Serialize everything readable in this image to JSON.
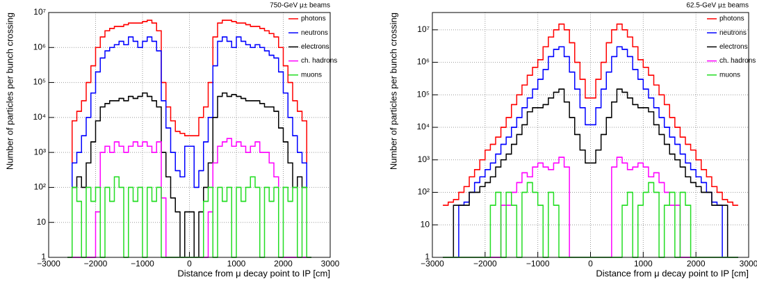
{
  "chart_data": [
    {
      "type": "histogram",
      "annotation": "750-GeV μ± beams",
      "xlabel": "Distance from μ decay point to IP [cm]",
      "ylabel": "Number of particles per bunch crossing",
      "xlim": [
        -3000,
        3000
      ],
      "ylim": [
        1,
        10000000
      ],
      "log_y": true,
      "grid": true,
      "legend": "top right",
      "xticks": [
        {
          "value": -3000,
          "label": "−3000"
        },
        {
          "value": -2000,
          "label": "−2000"
        },
        {
          "value": -1000,
          "label": "−1000"
        },
        0,
        1000,
        2000,
        3000
      ],
      "yticks": [
        1,
        10,
        {
          "value": 100,
          "label": "10²"
        },
        {
          "value": 1000,
          "label": "10³"
        },
        {
          "value": 10000,
          "label": "10⁴"
        },
        {
          "value": 100000,
          "label": "10⁵"
        },
        {
          "value": 1000000,
          "label": "10⁶"
        },
        {
          "value": 10000000,
          "label": "10⁷"
        }
      ],
      "bins": [
        -2600,
        -2500,
        -2400,
        -2300,
        -2200,
        -2100,
        -2000,
        -1900,
        -1800,
        -1700,
        -1600,
        -1500,
        -1400,
        -1300,
        -1200,
        -1100,
        -1000,
        -900,
        -800,
        -700,
        -600,
        -500,
        -400,
        -300,
        -200,
        -100,
        0,
        100,
        200,
        300,
        400,
        500,
        600,
        700,
        800,
        900,
        1000,
        1100,
        1200,
        1300,
        1400,
        1500,
        1600,
        1700,
        1800,
        1900,
        2000,
        2100,
        2200,
        2300,
        2400,
        2500,
        2600
      ],
      "series": [
        {
          "name": "photons",
          "color": "#ff0000",
          "values": [
            0,
            8000,
            15000,
            30000,
            100000,
            300000,
            1000000,
            2000000,
            3000000,
            3500000,
            4000000,
            4000000,
            4500000,
            5000000,
            5000000,
            5000000,
            5500000,
            6000000,
            5000000,
            3000000,
            100000,
            20000,
            8000,
            4000,
            3500,
            3000,
            3000,
            3000,
            10000,
            20000,
            100000,
            2000000,
            5000000,
            6000000,
            6000000,
            5500000,
            5000000,
            5000000,
            4500000,
            4000000,
            4000000,
            3500000,
            3000000,
            2500000,
            2000000,
            1000000,
            300000,
            100000,
            30000,
            15000,
            8000,
            0
          ]
        },
        {
          "name": "neutrons",
          "color": "#0000ff",
          "values": [
            0,
            500,
            1000,
            3000,
            10000,
            50000,
            200000,
            500000,
            800000,
            1000000,
            1200000,
            1500000,
            1200000,
            2000000,
            1500000,
            1000000,
            1500000,
            2000000,
            1500000,
            800000,
            30000,
            5000,
            1000,
            300,
            200,
            1500,
            1500,
            100,
            300,
            2000,
            10000,
            300000,
            1500000,
            2000000,
            1500000,
            1000000,
            2000000,
            1500000,
            1200000,
            1000000,
            1200000,
            1000000,
            800000,
            600000,
            500000,
            200000,
            50000,
            10000,
            3000,
            1000,
            500,
            0
          ]
        },
        {
          "name": "electrons",
          "color": "#000000",
          "values": [
            0,
            100,
            200,
            100,
            500,
            2000,
            8000,
            20000,
            25000,
            30000,
            30000,
            35000,
            30000,
            40000,
            35000,
            40000,
            50000,
            40000,
            30000,
            20000,
            1000,
            200,
            50,
            20,
            0,
            20,
            20,
            0,
            20,
            100,
            500,
            10000,
            40000,
            50000,
            40000,
            45000,
            40000,
            35000,
            30000,
            30000,
            30000,
            25000,
            20000,
            20000,
            15000,
            5000,
            2000,
            500,
            100,
            200,
            100,
            0
          ]
        },
        {
          "name": "ch. hadrons",
          "color": "#ff00ff",
          "values": [
            0,
            0,
            0,
            0,
            0,
            0,
            20,
            1000,
            1500,
            1000,
            2000,
            1500,
            1000,
            1500,
            2000,
            1500,
            2000,
            1500,
            1000,
            2000,
            50,
            0,
            0,
            0,
            0,
            0,
            0,
            0,
            0,
            0,
            20,
            500,
            1500,
            2000,
            2500,
            1500,
            2000,
            1500,
            1000,
            1500,
            2000,
            1000,
            1000,
            500,
            200,
            0,
            0,
            0,
            0,
            0,
            0,
            0
          ]
        },
        {
          "name": "muons",
          "color": "#22dd22",
          "values": [
            0,
            100,
            40,
            0,
            100,
            40,
            100,
            0,
            100,
            40,
            200,
            100,
            0,
            100,
            40,
            100,
            0,
            100,
            40,
            100,
            0,
            0,
            0,
            0,
            0,
            0,
            0,
            0,
            0,
            40,
            100,
            0,
            100,
            40,
            100,
            0,
            100,
            40,
            100,
            200,
            100,
            0,
            100,
            40,
            100,
            0,
            100,
            40,
            100,
            0,
            100,
            0
          ]
        }
      ]
    },
    {
      "type": "histogram",
      "annotation": "62.5-GeV μ± beams",
      "xlabel": "Distance from μ decay point to IP [cm]",
      "ylabel": "Number of particles per bunch crossing",
      "xlim": [
        -3000,
        3000
      ],
      "ylim": [
        1,
        34000000
      ],
      "log_y": true,
      "grid": true,
      "legend": "top right",
      "xticks": [
        {
          "value": -3000,
          "label": "−3000"
        },
        {
          "value": -2000,
          "label": "−2000"
        },
        {
          "value": -1000,
          "label": "−1000"
        },
        0,
        1000,
        2000,
        3000
      ],
      "yticks": [
        1,
        10,
        {
          "value": 100,
          "label": "10²"
        },
        {
          "value": 1000,
          "label": "10³"
        },
        {
          "value": 10000,
          "label": "10⁴"
        },
        {
          "value": 100000,
          "label": "10⁵"
        },
        {
          "value": 1000000,
          "label": "10⁶"
        },
        {
          "value": 10000000,
          "label": "10⁷"
        }
      ],
      "bins": [
        -2800,
        -2700,
        -2600,
        -2500,
        -2400,
        -2300,
        -2200,
        -2100,
        -2000,
        -1900,
        -1800,
        -1700,
        -1600,
        -1500,
        -1400,
        -1300,
        -1200,
        -1100,
        -1000,
        -900,
        -800,
        -700,
        -600,
        -500,
        -400,
        -300,
        -200,
        -100,
        0,
        100,
        200,
        300,
        400,
        500,
        600,
        700,
        800,
        900,
        1000,
        1100,
        1200,
        1300,
        1400,
        1500,
        1600,
        1700,
        1800,
        1900,
        2000,
        2100,
        2200,
        2300,
        2400,
        2500,
        2600,
        2700,
        2800
      ],
      "series": [
        {
          "name": "photons",
          "color": "#ff0000",
          "values": [
            40,
            50,
            60,
            100,
            150,
            300,
            500,
            1000,
            2000,
            3000,
            5000,
            10000,
            20000,
            50000,
            100000,
            200000,
            400000,
            700000,
            1200000,
            3000000,
            6000000,
            10000000,
            15000000,
            10000000,
            4000000,
            1000000,
            300000,
            80000,
            80000,
            300000,
            1000000,
            4000000,
            10000000,
            15000000,
            10000000,
            6000000,
            3000000,
            1200000,
            700000,
            400000,
            200000,
            100000,
            50000,
            20000,
            10000,
            5000,
            3000,
            2000,
            1000,
            500,
            300,
            150,
            100,
            60,
            50,
            40
          ]
        },
        {
          "name": "neutrons",
          "color": "#0000ff",
          "values": [
            0,
            0,
            0,
            40,
            50,
            100,
            200,
            300,
            500,
            800,
            1500,
            3000,
            5000,
            10000,
            20000,
            40000,
            80000,
            150000,
            300000,
            600000,
            1500000,
            2500000,
            3000000,
            1500000,
            500000,
            150000,
            40000,
            12000,
            12000,
            40000,
            150000,
            500000,
            1500000,
            3000000,
            2500000,
            1500000,
            600000,
            300000,
            150000,
            80000,
            40000,
            20000,
            10000,
            5000,
            3000,
            1500,
            800,
            500,
            300,
            200,
            100,
            50,
            40,
            0,
            0,
            0
          ]
        },
        {
          "name": "electrons",
          "color": "#000000",
          "values": [
            0,
            0,
            40,
            40,
            40,
            100,
            100,
            150,
            200,
            300,
            600,
            1000,
            1500,
            3000,
            6000,
            12000,
            30000,
            40000,
            40000,
            50000,
            80000,
            120000,
            150000,
            60000,
            20000,
            6000,
            2000,
            800,
            800,
            2000,
            6000,
            20000,
            60000,
            150000,
            120000,
            80000,
            50000,
            40000,
            40000,
            30000,
            12000,
            6000,
            3000,
            1500,
            1000,
            600,
            300,
            200,
            150,
            100,
            100,
            40,
            40,
            40,
            0,
            0
          ]
        },
        {
          "name": "ch. hadrons",
          "color": "#ff00ff",
          "values": [
            0,
            0,
            0,
            0,
            0,
            0,
            0,
            0,
            0,
            0,
            0,
            40,
            40,
            100,
            200,
            400,
            300,
            600,
            800,
            600,
            500,
            800,
            1200,
            600,
            0,
            0,
            0,
            0,
            0,
            0,
            0,
            0,
            600,
            1200,
            800,
            500,
            600,
            800,
            600,
            300,
            400,
            200,
            100,
            40,
            40,
            0,
            0,
            0,
            0,
            0,
            0,
            0,
            0,
            0,
            0,
            0
          ]
        },
        {
          "name": "muons",
          "color": "#22dd22",
          "values": [
            0,
            0,
            0,
            0,
            0,
            0,
            0,
            0,
            0,
            40,
            100,
            0,
            100,
            40,
            0,
            100,
            200,
            100,
            40,
            0,
            100,
            40,
            0,
            0,
            0,
            0,
            0,
            0,
            0,
            0,
            0,
            0,
            0,
            0,
            40,
            100,
            0,
            40,
            100,
            200,
            100,
            0,
            40,
            100,
            0,
            100,
            40,
            0,
            0,
            0,
            0,
            0,
            0,
            0,
            0,
            0
          ]
        }
      ]
    }
  ]
}
